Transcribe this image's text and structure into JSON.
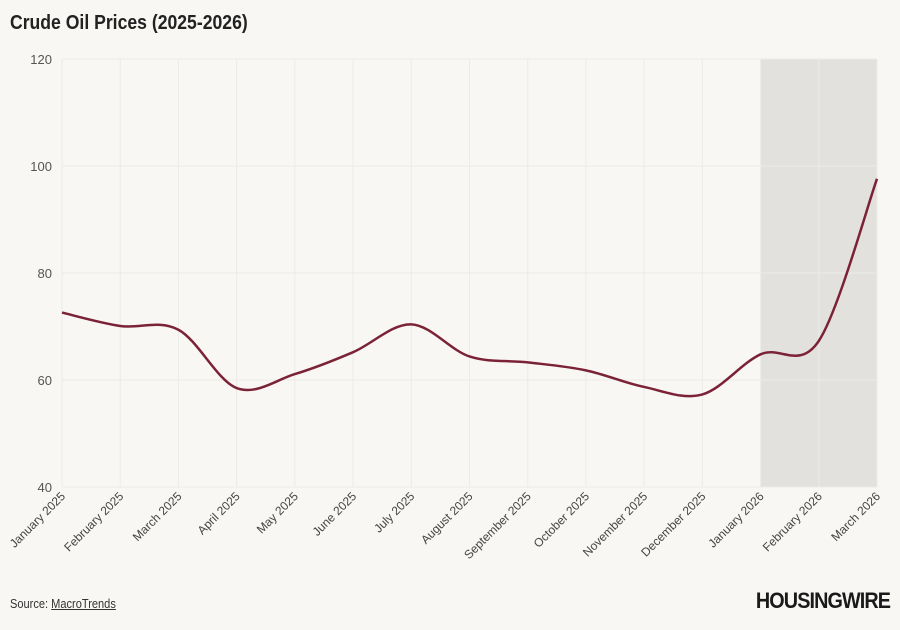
{
  "chart_data": {
    "type": "line",
    "title": "Crude Oil Prices (2025-2026)",
    "categories": [
      "January 2025",
      "February 2025",
      "March 2025",
      "April 2025",
      "May 2025",
      "June 2025",
      "July 2025",
      "August 2025",
      "September 2025",
      "October 2025",
      "November 2025",
      "December 2025",
      "January 2026",
      "February 2026",
      "March 2026"
    ],
    "values": [
      72.6,
      70.1,
      69.4,
      58.5,
      61.1,
      65.2,
      70.4,
      64.4,
      63.3,
      61.8,
      58.7,
      57.3,
      64.8,
      67.3,
      97.6
    ],
    "ylim": [
      40,
      120
    ],
    "yticks": [
      40,
      60,
      80,
      100,
      120
    ],
    "grid": true,
    "highlight_range": [
      "January 2026",
      "March 2026"
    ],
    "colors": {
      "line": "#7b2236",
      "highlight": "#e3e1de",
      "grid": "#ecebe7"
    }
  },
  "footer": {
    "source_prefix": "Source: ",
    "source_link": "MacroTrends",
    "logo": "HOUSINGWIRE"
  }
}
